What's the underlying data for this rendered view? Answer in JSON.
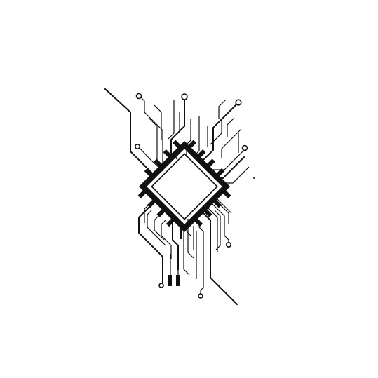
{
  "illustration": {
    "subject": "cpu-chip-circuit-traces",
    "colors": {
      "ink": "#111111",
      "background": "#ffffff",
      "chip_inner": "#ffffff"
    }
  }
}
